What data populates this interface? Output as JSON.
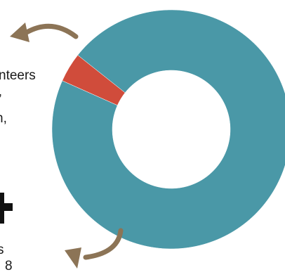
{
  "chart_data": {
    "type": "pie",
    "variant": "donut",
    "slices": [
      {
        "name": "",
        "value": 96,
        "color": "#4a98a7"
      },
      {
        "name": "",
        "value": 4,
        "color": "#d04c3b"
      }
    ],
    "title": "",
    "legend": "none"
  },
  "colors": {
    "arrow": "#8c7456",
    "text": "#1a1a1a",
    "background": "#ffffff"
  },
  "fragments": {
    "volunteers": "nteers",
    "comma": ",",
    "n_line": "n,",
    "s_line": "s",
    "eight": "8"
  }
}
